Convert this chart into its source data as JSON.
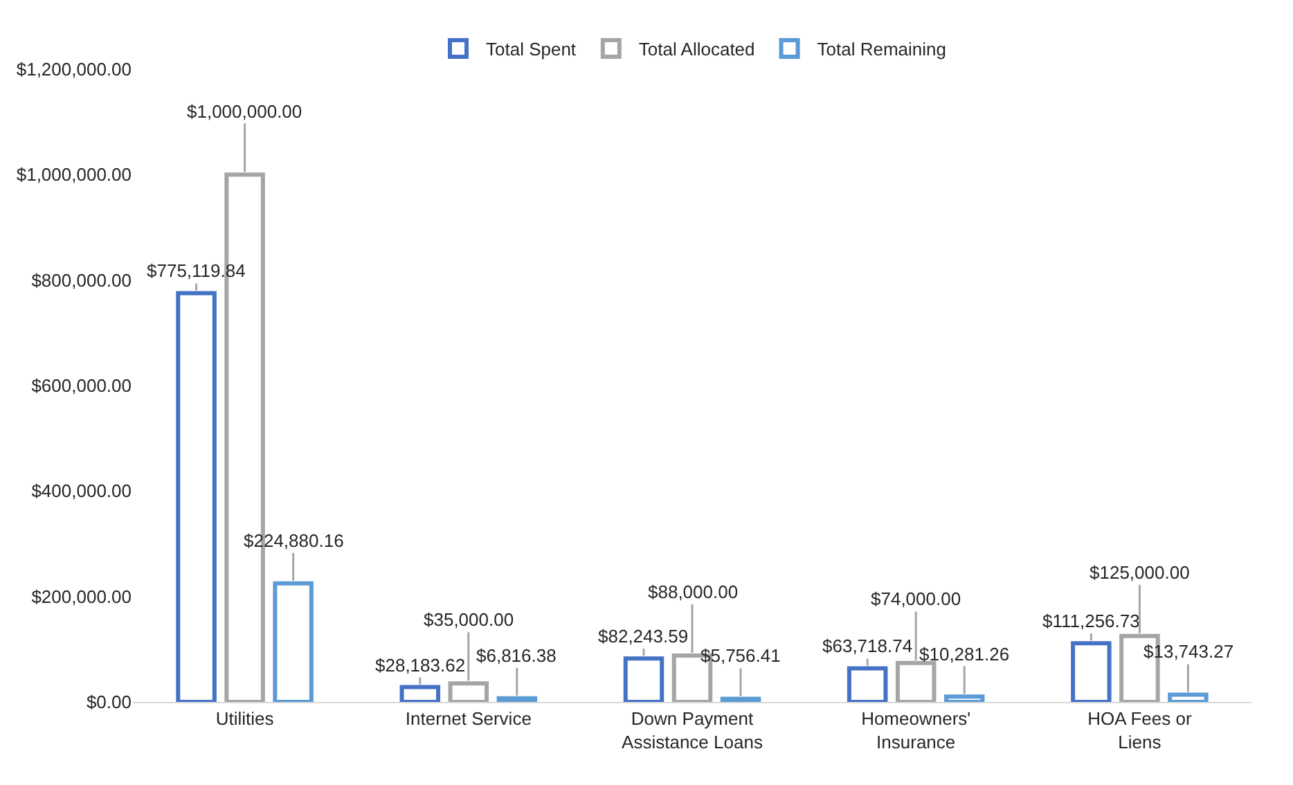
{
  "chart_data": {
    "type": "bar",
    "categories": [
      "Utilities",
      "Internet Service",
      "Down Payment Assistance Loans",
      "Homeowners' Insurance",
      "HOA Fees or Liens"
    ],
    "series": [
      {
        "name": "Total Spent",
        "color": "#4472c4",
        "values": [
          775119.84,
          28183.62,
          82243.59,
          63718.74,
          111256.73
        ],
        "value_labels": [
          "$775,119.84",
          "$28,183.62",
          "$82,243.59",
          "$63,718.74",
          "$111,256.73"
        ]
      },
      {
        "name": "Total Allocated",
        "color": "#a5a5a5",
        "values": [
          1000000.0,
          35000.0,
          88000.0,
          74000.0,
          125000.0
        ],
        "value_labels": [
          "$1,000,000.00",
          "$35,000.00",
          "$88,000.00",
          "$74,000.00",
          "$125,000.00"
        ]
      },
      {
        "name": "Total Remaining",
        "color": "#5b9bd5",
        "values": [
          224880.16,
          6816.38,
          5756.41,
          10281.26,
          13743.27
        ],
        "value_labels": [
          "$224,880.16",
          "$6,816.38",
          "$5,756.41",
          "$10,281.26",
          "$13,743.27"
        ]
      }
    ],
    "ylim": [
      0,
      1200000
    ],
    "yticks": [
      {
        "value": 0,
        "label": "$0.00"
      },
      {
        "value": 200000,
        "label": "$200,000.00"
      },
      {
        "value": 400000,
        "label": "$400,000.00"
      },
      {
        "value": 600000,
        "label": "$600,000.00"
      },
      {
        "value": 800000,
        "label": "$800,000.00"
      },
      {
        "value": 1000000,
        "label": "$1,000,000.00"
      },
      {
        "value": 1200000,
        "label": "$1,200,000.00"
      }
    ],
    "legend": "top"
  }
}
